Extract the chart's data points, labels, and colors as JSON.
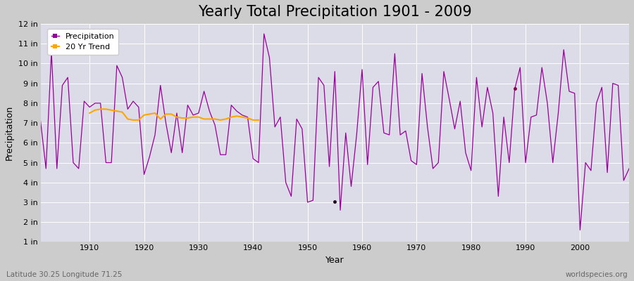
{
  "title": "Yearly Total Precipitation 1901 - 2009",
  "xlabel": "Year",
  "ylabel": "Precipitation",
  "lat_lon_label": "Latitude 30.25 Longitude 71.25",
  "watermark": "worldspecies.org",
  "ylim": [
    1,
    12
  ],
  "ytick_labels": [
    "1 in",
    "2 in",
    "3 in",
    "4 in",
    "5 in",
    "6 in",
    "7 in",
    "8 in",
    "9 in",
    "10 in",
    "11 in",
    "12 in"
  ],
  "ytick_values": [
    1,
    2,
    3,
    4,
    5,
    6,
    7,
    8,
    9,
    10,
    11,
    12
  ],
  "xlim": [
    1901,
    2009
  ],
  "precip_color": "#990099",
  "trend_color": "#FFA500",
  "fig_bg_color": "#CCCCCC",
  "plot_bg_color": "#DCDCE8",
  "grid_color": "#FFFFFF",
  "years": [
    1901,
    1902,
    1903,
    1904,
    1905,
    1906,
    1907,
    1908,
    1909,
    1910,
    1911,
    1912,
    1913,
    1914,
    1915,
    1916,
    1917,
    1918,
    1919,
    1920,
    1921,
    1922,
    1923,
    1924,
    1925,
    1926,
    1927,
    1928,
    1929,
    1930,
    1931,
    1932,
    1933,
    1934,
    1935,
    1936,
    1937,
    1938,
    1939,
    1940,
    1941,
    1942,
    1943,
    1944,
    1945,
    1946,
    1947,
    1948,
    1949,
    1950,
    1951,
    1952,
    1953,
    1954,
    1955,
    1956,
    1957,
    1958,
    1959,
    1960,
    1961,
    1962,
    1963,
    1964,
    1965,
    1966,
    1967,
    1968,
    1969,
    1970,
    1971,
    1972,
    1973,
    1974,
    1975,
    1976,
    1977,
    1978,
    1979,
    1980,
    1981,
    1982,
    1983,
    1984,
    1985,
    1986,
    1987,
    1988,
    1989,
    1990,
    1991,
    1992,
    1993,
    1994,
    1995,
    1996,
    1997,
    1998,
    1999,
    2000,
    2001,
    2002,
    2003,
    2004,
    2005,
    2006,
    2007,
    2008,
    2009
  ],
  "precip_values": [
    7.1,
    4.7,
    10.6,
    4.7,
    8.9,
    9.3,
    5.0,
    4.7,
    8.1,
    7.8,
    8.0,
    8.0,
    5.0,
    5.0,
    9.9,
    9.3,
    7.7,
    8.1,
    7.8,
    4.4,
    5.3,
    6.4,
    8.9,
    7.0,
    5.5,
    7.5,
    5.5,
    7.9,
    7.4,
    7.5,
    8.6,
    7.6,
    6.9,
    5.4,
    5.4,
    7.9,
    7.6,
    7.4,
    7.3,
    5.2,
    5.0,
    11.5,
    10.3,
    6.8,
    7.3,
    4.0,
    3.3,
    7.2,
    6.7,
    3.0,
    3.1,
    9.3,
    8.9,
    4.8,
    9.6,
    2.6,
    6.5,
    3.8,
    6.4,
    9.7,
    4.9,
    8.8,
    9.1,
    6.5,
    6.4,
    10.5,
    6.4,
    6.6,
    5.1,
    4.9,
    9.5,
    6.8,
    4.7,
    5.0,
    9.6,
    8.2,
    6.7,
    8.1,
    5.5,
    4.6,
    9.3,
    6.8,
    8.8,
    7.5,
    3.3,
    7.3,
    5.0,
    8.7,
    9.8,
    5.0,
    7.3,
    7.4,
    9.8,
    8.0,
    5.0,
    7.5,
    10.7,
    8.6,
    8.5,
    1.6,
    5.0,
    4.6,
    8.0,
    8.8,
    4.5,
    9.0,
    8.9,
    4.1,
    4.7
  ],
  "trend_years": [
    1910,
    1911,
    1912,
    1913,
    1914,
    1915,
    1916,
    1917,
    1918,
    1919,
    1920,
    1921,
    1922,
    1923,
    1924,
    1925,
    1926,
    1927,
    1928,
    1929,
    1930,
    1931,
    1932,
    1933,
    1934,
    1935,
    1936,
    1937,
    1938,
    1939,
    1940,
    1941
  ],
  "trend_values": [
    7.5,
    7.65,
    7.7,
    7.7,
    7.65,
    7.6,
    7.55,
    7.2,
    7.15,
    7.15,
    7.4,
    7.45,
    7.5,
    7.2,
    7.45,
    7.45,
    7.3,
    7.25,
    7.25,
    7.3,
    7.3,
    7.2,
    7.2,
    7.2,
    7.15,
    7.2,
    7.3,
    7.35,
    7.3,
    7.25,
    7.15,
    7.15
  ],
  "dot1_x": 1955,
  "dot1_y": 3.05,
  "dot2_x": 1988,
  "dot2_y": 8.75,
  "title_fontsize": 15,
  "axis_label_fontsize": 9,
  "tick_fontsize": 8,
  "legend_fontsize": 8
}
